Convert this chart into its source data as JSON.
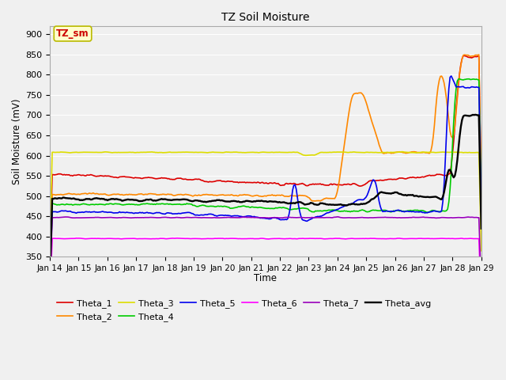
{
  "title": "TZ Soil Moisture",
  "xlabel": "Time",
  "ylabel": "Soil Moisture (mV)",
  "ylim": [
    350,
    920
  ],
  "yticks": [
    350,
    400,
    450,
    500,
    550,
    600,
    650,
    700,
    750,
    800,
    850,
    900
  ],
  "xtick_labels": [
    "Jan 14",
    "Jan 15",
    "Jan 16",
    "Jan 17",
    "Jan 18",
    "Jan 19",
    "Jan 20",
    "Jan 21",
    "Jan 22",
    "Jan 23",
    "Jan 24",
    "Jan 25",
    "Jan 26",
    "Jan 27",
    "Jan 28",
    "Jan 29"
  ],
  "series_colors": {
    "Theta_1": "#dd0000",
    "Theta_2": "#ff8800",
    "Theta_3": "#dddd00",
    "Theta_4": "#00cc00",
    "Theta_5": "#0000ee",
    "Theta_6": "#ff00ff",
    "Theta_7": "#9900bb",
    "Theta_avg": "#000000"
  },
  "legend_label": "TZ_sm",
  "legend_label_color": "#cc0000",
  "legend_box_facecolor": "#ffffcc",
  "legend_box_edgecolor": "#bbbb00",
  "bg_color": "#f0f0f0",
  "plot_bg_color": "#f0f0f0",
  "grid_color": "#ffffff"
}
